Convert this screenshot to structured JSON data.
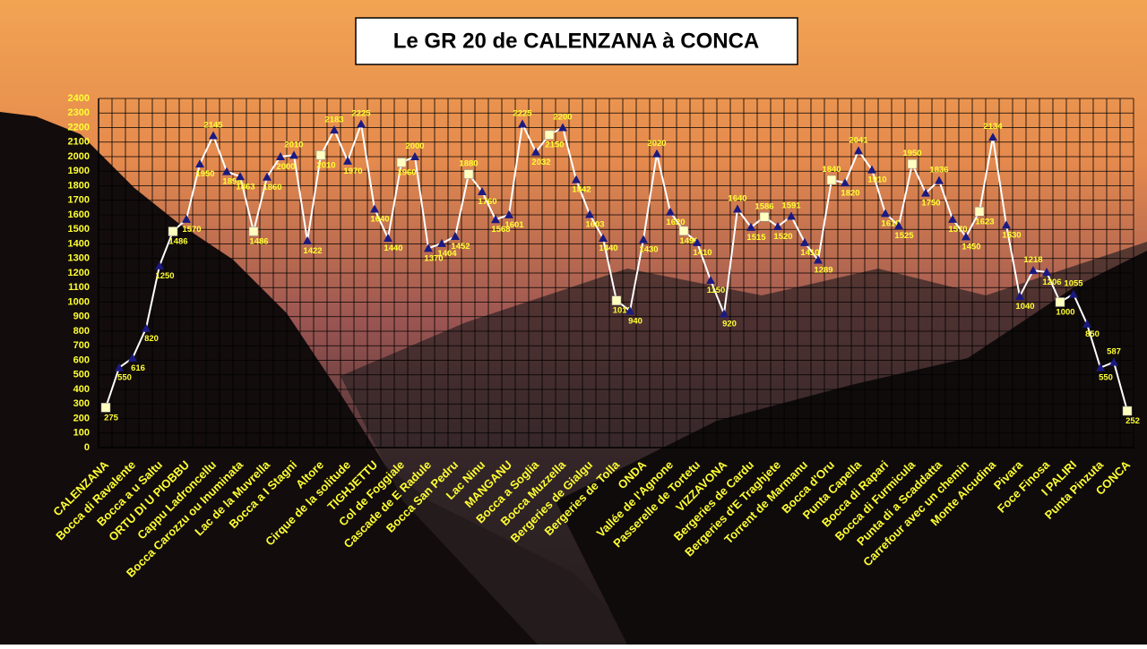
{
  "chart_data": {
    "type": "line",
    "title": "Le GR 20 de CALENZANA à CONCA",
    "categories": [
      "CALENZANA",
      null,
      "Bocca di Ravalente",
      null,
      "Bocca a u Saltu",
      null,
      "ORTU DI U PIOBBU",
      null,
      "Cappu Ladroncellu",
      null,
      "Bocca Carozzu ou Inuminata",
      null,
      "Lac de la Muvrella",
      null,
      "Bocca a I Stagni",
      null,
      "Altore",
      null,
      "Cirque de la solitude",
      null,
      "TIGHJETTU",
      null,
      "Col de Foggiale",
      null,
      "Cascade de E Radule",
      null,
      "Bocca San Pedru",
      null,
      "Lac Ninu",
      null,
      "MANGANU",
      null,
      "Bocca a Soglia",
      null,
      "Bocca Muzzella",
      null,
      "Bergeries de Gialgu",
      null,
      "Bergeries de Tolla",
      null,
      "ONDA",
      null,
      "Vallée de l'Agnone",
      null,
      "Passerelle de Tortetu",
      null,
      "VIZZAVONA",
      null,
      "Bergeries de Cardu",
      null,
      "Bergeries d'E Traghjete",
      null,
      "Torrent de Marmanu",
      null,
      "Bocca d'Oru",
      null,
      "Punta Capella",
      null,
      "Bocca di Rapari",
      null,
      "Bocca di Furmicula",
      null,
      "Punta di a Scaddatta",
      null,
      "Carrefour avec un chemin",
      null,
      "Monte Alcudina",
      null,
      "Pivara",
      null,
      "Foce Finosa",
      null,
      "I PALIRI",
      null,
      "Punta Pinzuta",
      null,
      "CONCA"
    ],
    "values": [
      275,
      550,
      616,
      820,
      1250,
      1486,
      1570,
      1950,
      2145,
      1898,
      1863,
      1486,
      1860,
      2000,
      2010,
      1422,
      2010,
      2183,
      1970,
      2225,
      1640,
      1440,
      1960,
      2000,
      1370,
      1404,
      1452,
      1880,
      1760,
      1568,
      1601,
      2225,
      2032,
      2150,
      2200,
      1842,
      1603,
      1440,
      1011,
      940,
      1430,
      2020,
      1620,
      1490,
      1410,
      1150,
      920,
      1640,
      1515,
      1586,
      1520,
      1591,
      1410,
      1289,
      1840,
      1820,
      2041,
      1910,
      1610,
      1525,
      1950,
      1750,
      1836,
      1570,
      1450,
      1623,
      2134,
      1530,
      1040,
      1218,
      1206,
      1000,
      1055,
      850,
      550,
      587,
      252
    ],
    "color": "#ffffff",
    "square_markers": [
      0,
      5,
      11,
      16,
      22,
      27,
      33,
      38,
      43,
      49,
      54,
      60,
      65,
      71,
      76
    ],
    "ylim": [
      0,
      2400
    ],
    "yticks": [
      0,
      100,
      200,
      300,
      400,
      500,
      600,
      700,
      800,
      900,
      1000,
      1100,
      1200,
      1300,
      1400,
      1500,
      1600,
      1700,
      1800,
      1900,
      2000,
      2100,
      2200,
      2300,
      2400
    ],
    "grid": true
  }
}
